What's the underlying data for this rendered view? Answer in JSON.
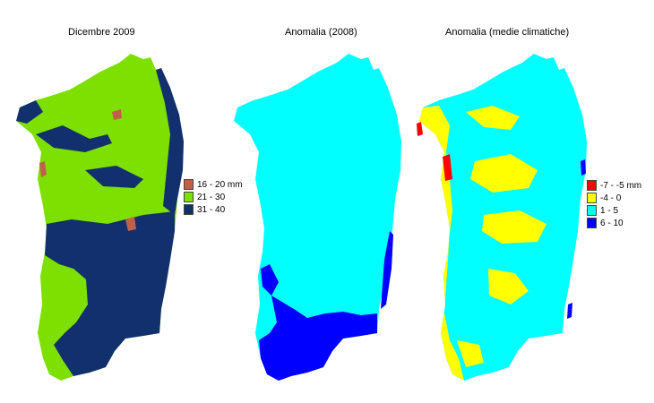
{
  "panels": [
    {
      "title": "Dicembre 2009",
      "legend": [
        {
          "label": "16 - 20 mm",
          "color": "#c0604a"
        },
        {
          "label": "21 - 30",
          "color": "#7ee000"
        },
        {
          "label": "31 - 40",
          "color": "#12306e"
        }
      ]
    },
    {
      "title": "Anomalia (2008)",
      "legend": []
    },
    {
      "title": "Anomalia (medie climatiche)",
      "legend": [
        {
          "label": "-7 - -5 mm",
          "color": "#ff0000"
        },
        {
          "label": "-4 - 0",
          "color": "#ffff00"
        },
        {
          "label": "1 - 5",
          "color": "#00ffff"
        },
        {
          "label": "6 - 10",
          "color": "#0000ff"
        }
      ]
    }
  ],
  "colors": {
    "cyan": "#00ffff",
    "blue": "#0000ff",
    "yellow": "#ffff00",
    "red": "#ff0000",
    "green": "#7ee000",
    "navy": "#12306e",
    "brown": "#c0604a"
  }
}
